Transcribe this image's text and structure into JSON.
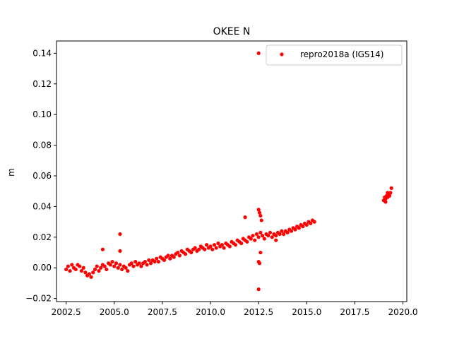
{
  "chart_data": {
    "type": "scatter",
    "title": "OKEE N",
    "xlabel": "",
    "ylabel": "m",
    "xlim": [
      2002.0,
      2020.2
    ],
    "ylim": [
      -0.022,
      0.148
    ],
    "x_ticks": [
      2002.5,
      2005.0,
      2007.5,
      2010.0,
      2012.5,
      2015.0,
      2017.5,
      2020.0
    ],
    "x_tick_labels": [
      "2002.5",
      "2005.0",
      "2007.5",
      "2010.0",
      "2012.5",
      "2015.0",
      "2017.5",
      "2020.0"
    ],
    "y_ticks": [
      -0.02,
      0.0,
      0.02,
      0.04,
      0.06,
      0.08,
      0.1,
      0.12,
      0.14
    ],
    "y_tick_labels": [
      "−0.02",
      "0.00",
      "0.02",
      "0.04",
      "0.06",
      "0.08",
      "0.10",
      "0.12",
      "0.14"
    ],
    "legend_position": "top-right",
    "grid": false,
    "series": [
      {
        "name": "repro2018a (IGS14)",
        "color": "#ff0000",
        "marker": "circle",
        "points": [
          [
            2002.5,
            -0.001
          ],
          [
            2002.6,
            0.001
          ],
          [
            2002.7,
            -0.002
          ],
          [
            2002.8,
            0.002
          ],
          [
            2002.9,
            0.0
          ],
          [
            2003.0,
            -0.001
          ],
          [
            2003.1,
            0.002
          ],
          [
            2003.2,
            0.001
          ],
          [
            2003.3,
            -0.002
          ],
          [
            2003.4,
            0.0
          ],
          [
            2003.5,
            -0.003
          ],
          [
            2003.6,
            -0.005
          ],
          [
            2003.7,
            -0.004
          ],
          [
            2003.8,
            -0.006
          ],
          [
            2003.9,
            -0.003
          ],
          [
            2004.0,
            -0.001
          ],
          [
            2004.1,
            0.001
          ],
          [
            2004.2,
            -0.002
          ],
          [
            2004.3,
            0.0
          ],
          [
            2004.4,
            0.002
          ],
          [
            2004.5,
            0.001
          ],
          [
            2004.6,
            -0.001
          ],
          [
            2004.7,
            0.003
          ],
          [
            2004.8,
            0.002
          ],
          [
            2004.9,
            0.004
          ],
          [
            2005.0,
            0.001
          ],
          [
            2005.1,
            0.003
          ],
          [
            2005.2,
            0.0
          ],
          [
            2005.3,
            0.002
          ],
          [
            2005.4,
            -0.001
          ],
          [
            2005.5,
            0.001
          ],
          [
            2005.6,
            0.0
          ],
          [
            2005.7,
            -0.002
          ],
          [
            2005.8,
            0.002
          ],
          [
            2005.9,
            0.003
          ],
          [
            2006.0,
            0.001
          ],
          [
            2006.1,
            0.004
          ],
          [
            2006.2,
            0.002
          ],
          [
            2006.3,
            0.003
          ],
          [
            2006.4,
            0.001
          ],
          [
            2006.5,
            0.003
          ],
          [
            2006.6,
            0.004
          ],
          [
            2006.7,
            0.002
          ],
          [
            2006.8,
            0.005
          ],
          [
            2006.9,
            0.003
          ],
          [
            2007.0,
            0.005
          ],
          [
            2007.1,
            0.004
          ],
          [
            2007.2,
            0.006
          ],
          [
            2007.3,
            0.004
          ],
          [
            2007.4,
            0.007
          ],
          [
            2007.5,
            0.006
          ],
          [
            2007.6,
            0.005
          ],
          [
            2007.7,
            0.007
          ],
          [
            2007.8,
            0.008
          ],
          [
            2007.9,
            0.006
          ],
          [
            2008.0,
            0.008
          ],
          [
            2008.1,
            0.007
          ],
          [
            2008.2,
            0.009
          ],
          [
            2008.3,
            0.01
          ],
          [
            2008.4,
            0.008
          ],
          [
            2008.5,
            0.011
          ],
          [
            2008.6,
            0.01
          ],
          [
            2008.7,
            0.009
          ],
          [
            2008.8,
            0.012
          ],
          [
            2008.9,
            0.011
          ],
          [
            2009.0,
            0.01
          ],
          [
            2009.1,
            0.012
          ],
          [
            2009.2,
            0.013
          ],
          [
            2009.3,
            0.011
          ],
          [
            2009.4,
            0.012
          ],
          [
            2009.5,
            0.014
          ],
          [
            2009.6,
            0.013
          ],
          [
            2009.7,
            0.012
          ],
          [
            2009.8,
            0.015
          ],
          [
            2009.9,
            0.013
          ],
          [
            2010.0,
            0.014
          ],
          [
            2010.1,
            0.012
          ],
          [
            2010.2,
            0.015
          ],
          [
            2010.3,
            0.013
          ],
          [
            2010.4,
            0.016
          ],
          [
            2010.5,
            0.014
          ],
          [
            2010.6,
            0.015
          ],
          [
            2010.7,
            0.013
          ],
          [
            2010.8,
            0.016
          ],
          [
            2010.9,
            0.015
          ],
          [
            2011.0,
            0.014
          ],
          [
            2011.1,
            0.017
          ],
          [
            2011.2,
            0.016
          ],
          [
            2011.3,
            0.015
          ],
          [
            2011.4,
            0.018
          ],
          [
            2011.5,
            0.017
          ],
          [
            2011.6,
            0.016
          ],
          [
            2011.7,
            0.019
          ],
          [
            2011.8,
            0.018
          ],
          [
            2011.9,
            0.017
          ],
          [
            2012.0,
            0.02
          ],
          [
            2012.1,
            0.019
          ],
          [
            2012.2,
            0.021
          ],
          [
            2012.3,
            0.018
          ],
          [
            2012.4,
            0.022
          ],
          [
            2012.5,
            0.02
          ],
          [
            2012.6,
            0.023
          ],
          [
            2012.7,
            0.021
          ],
          [
            2012.8,
            0.019
          ],
          [
            2012.9,
            0.022
          ],
          [
            2013.0,
            0.021
          ],
          [
            2013.1,
            0.023
          ],
          [
            2013.2,
            0.02
          ],
          [
            2013.3,
            0.022
          ],
          [
            2013.4,
            0.021
          ],
          [
            2013.5,
            0.023
          ],
          [
            2013.6,
            0.022
          ],
          [
            2013.7,
            0.024
          ],
          [
            2013.8,
            0.022
          ],
          [
            2013.9,
            0.024
          ],
          [
            2014.0,
            0.023
          ],
          [
            2014.1,
            0.025
          ],
          [
            2014.2,
            0.024
          ],
          [
            2014.3,
            0.026
          ],
          [
            2014.4,
            0.025
          ],
          [
            2014.5,
            0.027
          ],
          [
            2014.6,
            0.026
          ],
          [
            2014.7,
            0.028
          ],
          [
            2014.8,
            0.027
          ],
          [
            2014.9,
            0.029
          ],
          [
            2015.0,
            0.028
          ],
          [
            2015.1,
            0.03
          ],
          [
            2015.2,
            0.029
          ],
          [
            2015.3,
            0.031
          ],
          [
            2015.4,
            0.03
          ],
          [
            2005.3,
            0.022
          ],
          [
            2004.4,
            0.012
          ],
          [
            2005.3,
            0.011
          ],
          [
            2011.8,
            0.033
          ],
          [
            2012.5,
            0.038
          ],
          [
            2012.55,
            0.036
          ],
          [
            2012.6,
            0.034
          ],
          [
            2012.65,
            0.031
          ],
          [
            2012.5,
            0.004
          ],
          [
            2012.55,
            0.003
          ],
          [
            2012.6,
            0.01
          ],
          [
            2012.5,
            -0.014
          ],
          [
            2012.5,
            0.14
          ],
          [
            2013.4,
            0.018
          ],
          [
            2019.0,
            0.044
          ],
          [
            2019.05,
            0.046
          ],
          [
            2019.1,
            0.045
          ],
          [
            2019.15,
            0.047
          ],
          [
            2019.2,
            0.046
          ],
          [
            2019.25,
            0.048
          ],
          [
            2019.3,
            0.047
          ],
          [
            2019.35,
            0.049
          ],
          [
            2019.4,
            0.052
          ],
          [
            2019.1,
            0.043
          ],
          [
            2019.2,
            0.049
          ]
        ]
      }
    ]
  }
}
